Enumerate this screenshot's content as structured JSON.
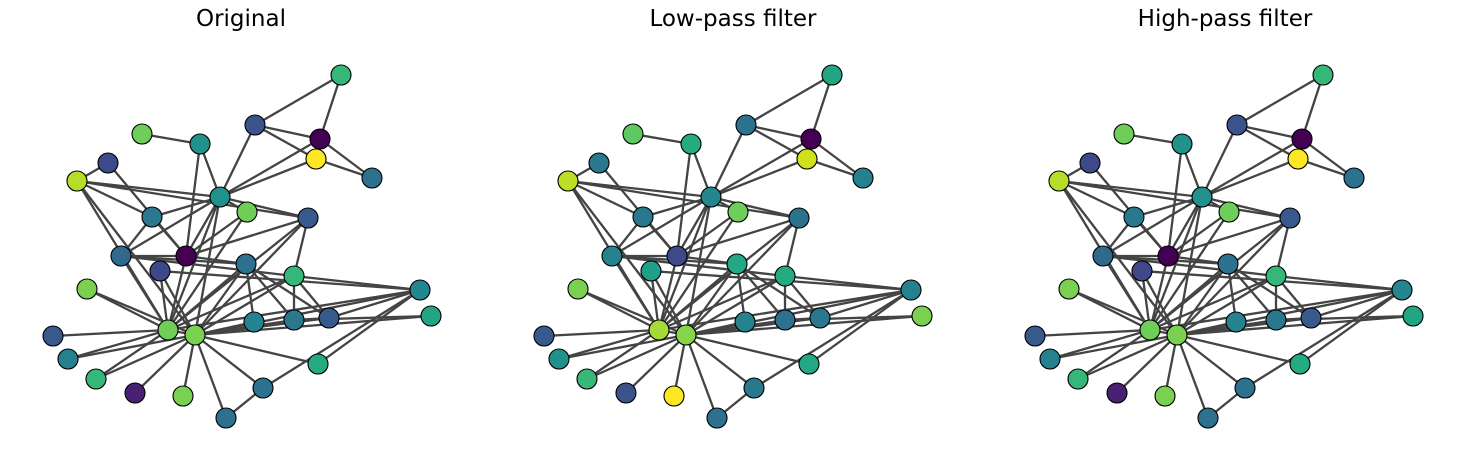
{
  "panels": [
    {
      "title": "Original",
      "node_colors": [
        "#35b779",
        "#6ece58",
        "#3b528b",
        "#440154",
        "#fde725",
        "#2c728e",
        "#21918c",
        "#3e4989",
        "#21918c",
        "#b5de2b",
        "#2a788e",
        "#6ece58",
        "#440154",
        "#38598c",
        "#30698e",
        "#6ece58",
        "#7ad151",
        "#2c728e",
        "#35b779",
        "#2a788e",
        "#38598c",
        "#24868e",
        "#21a585",
        "#3e4989",
        "#7ad151",
        "#38598c",
        "#26818e",
        "#35b779",
        "#482173",
        "#7ad151",
        "#26828e",
        "#2c728e",
        "#25ab82",
        "#2c728e"
      ]
    },
    {
      "title": "Low-pass filter",
      "node_colors": [
        "#21a585",
        "#5ec962",
        "#2c728e",
        "#440154",
        "#d0e11c",
        "#26818e",
        "#24868e",
        "#2a788e",
        "#25ab82",
        "#bddf26",
        "#2a788e",
        "#6ece58",
        "#3e4989",
        "#2c728e",
        "#26828e",
        "#a5db36",
        "#86d549",
        "#22a884",
        "#25ab82",
        "#2c728e",
        "#2a788e",
        "#26818e",
        "#7ad151",
        "#1fa088",
        "#7ad151",
        "#38598c",
        "#21918c",
        "#37b878",
        "#3b528b",
        "#fde725",
        "#26828e",
        "#2a788e",
        "#22a884",
        "#2c728e"
      ]
    },
    {
      "title": "High-pass filter",
      "node_colors": [
        "#35b779",
        "#6ece58",
        "#3b528b",
        "#440154",
        "#fde725",
        "#2c728e",
        "#21918c",
        "#3e4989",
        "#21918c",
        "#b5de2b",
        "#2a788e",
        "#6ece58",
        "#440154",
        "#38598c",
        "#30698e",
        "#6ece58",
        "#7ad151",
        "#2c728e",
        "#35b779",
        "#2a788e",
        "#38598c",
        "#24868e",
        "#21a585",
        "#3e4989",
        "#7ad151",
        "#38598c",
        "#26818e",
        "#35b779",
        "#482173",
        "#7ad151",
        "#26828e",
        "#2c728e",
        "#25ab82",
        "#2c728e"
      ]
    }
  ],
  "nodes": [
    "n0",
    "n1",
    "n2",
    "n3",
    "n4",
    "n5",
    "n6",
    "n7",
    "n8",
    "n9",
    "n10",
    "n11",
    "n12",
    "n13",
    "n14",
    "n15",
    "n16",
    "n17",
    "n18",
    "n19",
    "n20",
    "n21",
    "n22",
    "n23",
    "n24",
    "n25",
    "n26",
    "n27",
    "n28",
    "n29",
    "n30",
    "n31",
    "n32",
    "n33"
  ],
  "edges": [
    [
      "n6",
      "n2"
    ],
    [
      "n6",
      "n3"
    ],
    [
      "n6",
      "n4"
    ],
    [
      "n6",
      "n8"
    ],
    [
      "n6",
      "n9"
    ],
    [
      "n6",
      "n10"
    ],
    [
      "n6",
      "n11"
    ],
    [
      "n6",
      "n12"
    ],
    [
      "n6",
      "n13"
    ],
    [
      "n6",
      "n14"
    ],
    [
      "n6",
      "n15"
    ],
    [
      "n6",
      "n16"
    ],
    [
      "n2",
      "n0"
    ],
    [
      "n2",
      "n3"
    ],
    [
      "n2",
      "n4"
    ],
    [
      "n3",
      "n4"
    ],
    [
      "n3",
      "n5"
    ],
    [
      "n4",
      "n5"
    ],
    [
      "n0",
      "n3"
    ],
    [
      "n15",
      "n16"
    ],
    [
      "n15",
      "n12"
    ],
    [
      "n15",
      "n11"
    ],
    [
      "n15",
      "n9"
    ],
    [
      "n15",
      "n17"
    ],
    [
      "n15",
      "n18"
    ],
    [
      "n15",
      "n21"
    ],
    [
      "n15",
      "n24"
    ],
    [
      "n15",
      "n13"
    ],
    [
      "n15",
      "n14"
    ],
    [
      "n15",
      "n23"
    ],
    [
      "n15",
      "n25"
    ],
    [
      "n15",
      "n26"
    ],
    [
      "n16",
      "n18"
    ],
    [
      "n16",
      "n9"
    ],
    [
      "n16",
      "n13"
    ],
    [
      "n16",
      "n19"
    ],
    [
      "n16",
      "n20"
    ],
    [
      "n16",
      "n21"
    ],
    [
      "n16",
      "n22"
    ],
    [
      "n16",
      "n23"
    ],
    [
      "n16",
      "n24"
    ],
    [
      "n16",
      "n26"
    ],
    [
      "n16",
      "n27"
    ],
    [
      "n16",
      "n28"
    ],
    [
      "n16",
      "n29"
    ],
    [
      "n16",
      "n30"
    ],
    [
      "n16",
      "n31"
    ],
    [
      "n16",
      "n32"
    ],
    [
      "n16",
      "n33"
    ],
    [
      "n12",
      "n8"
    ],
    [
      "n12",
      "n7"
    ],
    [
      "n12",
      "n10"
    ],
    [
      "n12",
      "n14"
    ],
    [
      "n12",
      "n11"
    ],
    [
      "n12",
      "n17"
    ],
    [
      "n12",
      "n13"
    ],
    [
      "n10",
      "n9"
    ],
    [
      "n10",
      "n14"
    ],
    [
      "n14",
      "n17"
    ],
    [
      "n14",
      "n18"
    ],
    [
      "n17",
      "n19"
    ],
    [
      "n17",
      "n20"
    ],
    [
      "n17",
      "n30"
    ],
    [
      "n18",
      "n19"
    ],
    [
      "n18",
      "n20"
    ],
    [
      "n19",
      "n20"
    ],
    [
      "n20",
      "n21"
    ],
    [
      "n19",
      "n22"
    ],
    [
      "n21",
      "n32"
    ],
    [
      "n21",
      "n31"
    ],
    [
      "n31",
      "n33"
    ],
    [
      "n1",
      "n8"
    ],
    [
      "n13",
      "n9"
    ],
    [
      "n7",
      "n9"
    ],
    [
      "n17",
      "n16"
    ],
    [
      "n23",
      "n21"
    ],
    [
      "n18",
      "n21"
    ],
    [
      "n15",
      "n27"
    ],
    [
      "n13",
      "n18"
    ]
  ]
}
